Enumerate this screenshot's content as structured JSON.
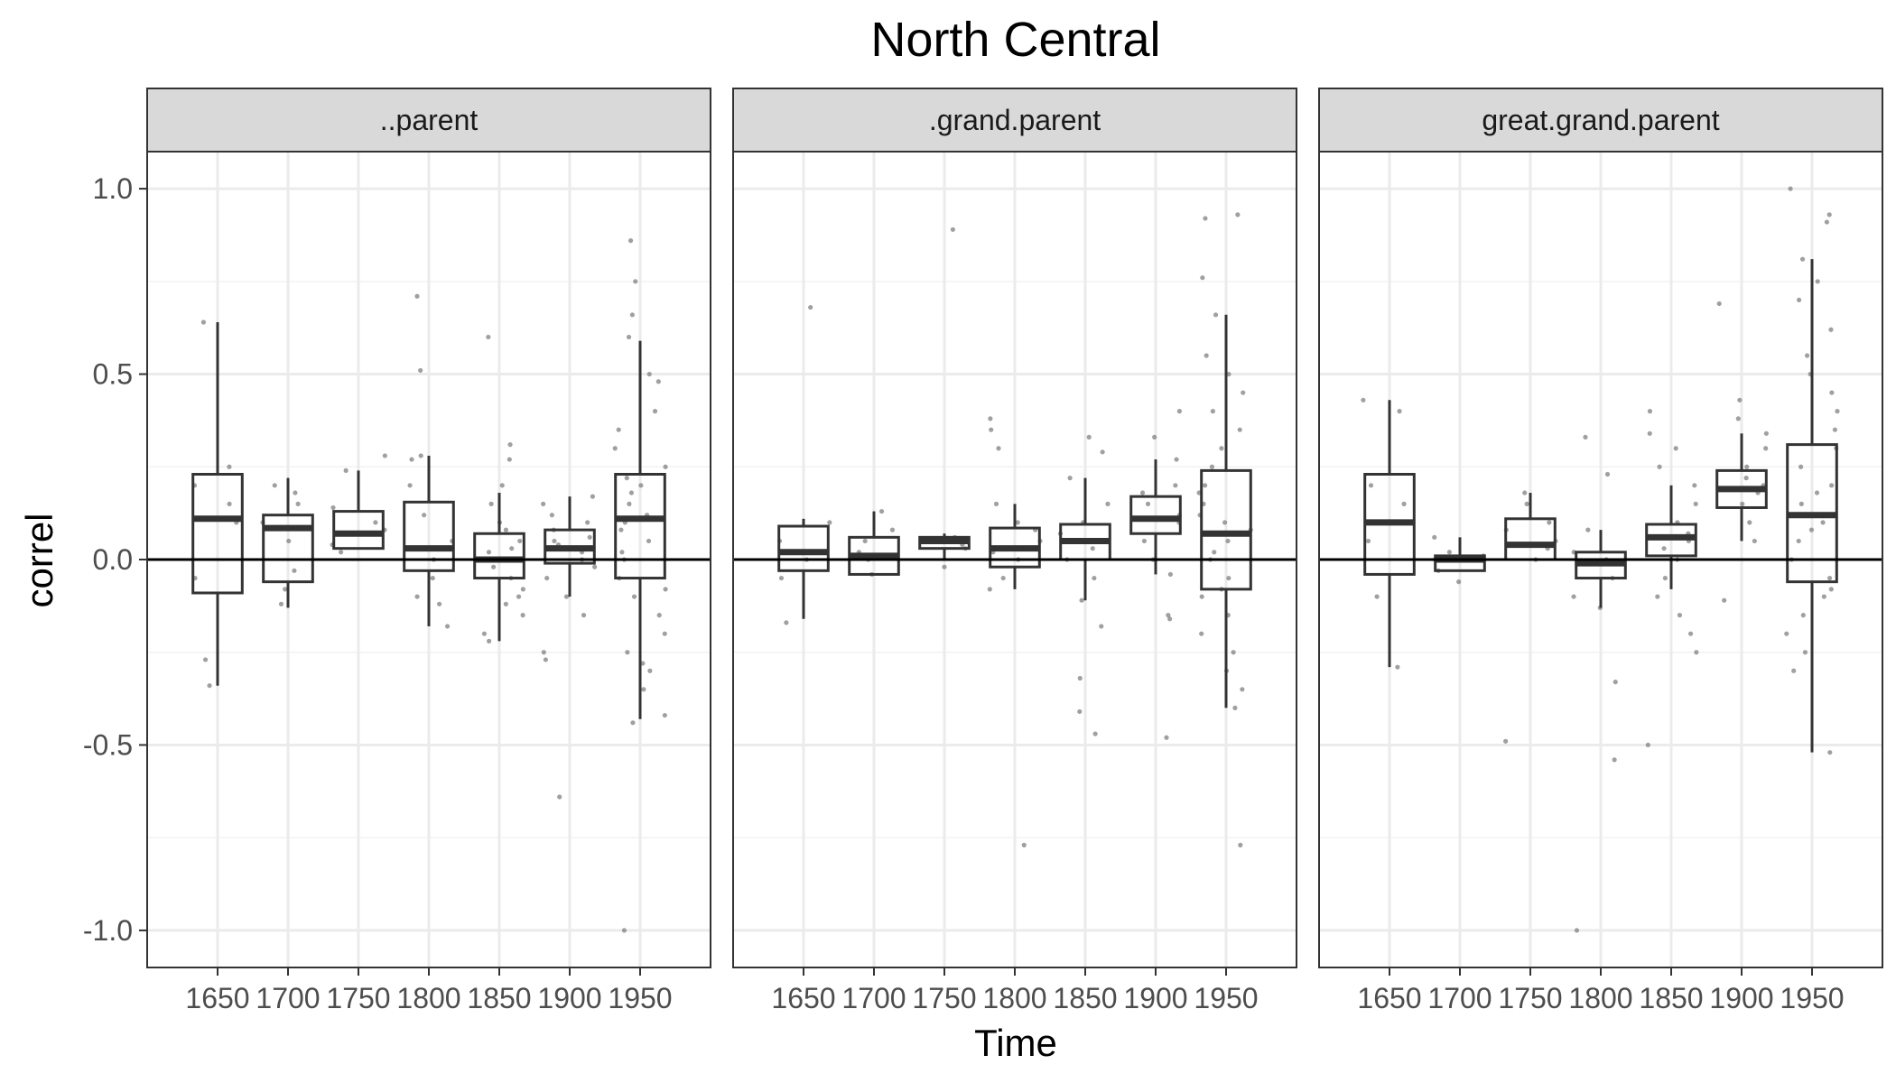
{
  "chart_data": {
    "type": "boxplot",
    "title": "North Central",
    "xlabel": "Time",
    "ylabel": "correl",
    "ylim": [
      -1.1,
      1.1
    ],
    "yticks": [
      1.0,
      0.5,
      0.0,
      -0.5,
      -1.0
    ],
    "ytick_labels": [
      "1.0",
      "0.5",
      "0.0",
      "-0.5",
      "-1.0"
    ],
    "categories": [
      "1650",
      "1700",
      "1750",
      "1800",
      "1850",
      "1900",
      "1950"
    ],
    "reference_line": 0,
    "facets": [
      {
        "label": "..parent",
        "boxes": [
          {
            "x": "1650",
            "lower": -0.34,
            "q1": -0.09,
            "median": 0.11,
            "q3": 0.23,
            "upper": 0.64
          },
          {
            "x": "1700",
            "lower": -0.13,
            "q1": -0.06,
            "median": 0.085,
            "q3": 0.12,
            "upper": 0.22
          },
          {
            "x": "1750",
            "lower": 0.03,
            "q1": 0.03,
            "median": 0.07,
            "q3": 0.13,
            "upper": 0.24
          },
          {
            "x": "1800",
            "lower": -0.18,
            "q1": -0.03,
            "median": 0.03,
            "q3": 0.155,
            "upper": 0.28
          },
          {
            "x": "1850",
            "lower": -0.22,
            "q1": -0.05,
            "median": 0.0,
            "q3": 0.07,
            "upper": 0.18
          },
          {
            "x": "1900",
            "lower": -0.1,
            "q1": -0.01,
            "median": 0.03,
            "q3": 0.08,
            "upper": 0.17
          },
          {
            "x": "1950",
            "lower": -0.43,
            "q1": -0.05,
            "median": 0.11,
            "q3": 0.23,
            "upper": 0.59
          }
        ],
        "points": [
          {
            "x": "1650",
            "y": [
              0.64,
              -0.27,
              -0.34,
              0.2,
              0.25,
              0.1,
              -0.05,
              0.15
            ]
          },
          {
            "x": "1700",
            "y": [
              0.2,
              0.18,
              0.15,
              -0.08,
              -0.12,
              0.05,
              0.1,
              -0.03
            ]
          },
          {
            "x": "1750",
            "y": [
              0.24,
              0.28,
              0.04,
              0.1,
              0.14,
              0.02,
              0.08
            ]
          },
          {
            "x": "1800",
            "y": [
              0.71,
              0.51,
              0.28,
              0.27,
              -0.12,
              -0.18,
              0.05,
              0.12,
              -0.05,
              0.0,
              0.2,
              -0.1
            ]
          },
          {
            "x": "1850",
            "y": [
              0.6,
              0.31,
              0.27,
              0.2,
              0.15,
              0.1,
              0.05,
              0.02,
              -0.02,
              -0.05,
              -0.08,
              -0.12,
              -0.15,
              -0.2,
              -0.22,
              0.08,
              0.0,
              0.03,
              -0.1
            ]
          },
          {
            "x": "1900",
            "y": [
              -0.64,
              -0.27,
              -0.25,
              0.17,
              0.15,
              0.12,
              0.1,
              0.08,
              0.05,
              0.03,
              0.0,
              -0.02,
              -0.05,
              -0.1,
              -0.15,
              0.06,
              0.02,
              0.04
            ]
          },
          {
            "x": "1950",
            "y": [
              0.86,
              0.75,
              0.66,
              0.6,
              0.5,
              0.48,
              0.4,
              0.35,
              0.3,
              0.25,
              0.2,
              0.15,
              0.1,
              0.05,
              0.0,
              -0.05,
              -0.1,
              -0.15,
              -0.2,
              -0.25,
              -0.28,
              -0.3,
              -0.35,
              -0.42,
              -0.44,
              -1.0,
              0.12,
              0.18,
              0.08,
              -0.08,
              0.22,
              0.02
            ]
          }
        ]
      },
      {
        "label": ".grand.parent",
        "boxes": [
          {
            "x": "1650",
            "lower": -0.16,
            "q1": -0.03,
            "median": 0.02,
            "q3": 0.09,
            "upper": 0.11
          },
          {
            "x": "1700",
            "lower": -0.04,
            "q1": -0.04,
            "median": 0.01,
            "q3": 0.06,
            "upper": 0.13
          },
          {
            "x": "1750",
            "lower": 0.0,
            "q1": 0.03,
            "median": 0.05,
            "q3": 0.06,
            "upper": 0.07
          },
          {
            "x": "1800",
            "lower": -0.08,
            "q1": -0.02,
            "median": 0.03,
            "q3": 0.085,
            "upper": 0.15
          },
          {
            "x": "1850",
            "lower": -0.11,
            "q1": 0.0,
            "median": 0.05,
            "q3": 0.095,
            "upper": 0.22
          },
          {
            "x": "1900",
            "lower": -0.04,
            "q1": 0.07,
            "median": 0.11,
            "q3": 0.17,
            "upper": 0.27
          },
          {
            "x": "1950",
            "lower": -0.4,
            "q1": -0.08,
            "median": 0.07,
            "q3": 0.24,
            "upper": 0.66
          }
        ],
        "points": [
          {
            "x": "1650",
            "y": [
              0.68,
              0.1,
              0.05,
              -0.05,
              -0.17,
              0.0
            ]
          },
          {
            "x": "1700",
            "y": [
              0.13,
              0.05,
              0.0,
              -0.04,
              0.08,
              0.02
            ]
          },
          {
            "x": "1750",
            "y": [
              0.89,
              0.06,
              0.05,
              0.04,
              -0.02,
              0.03
            ]
          },
          {
            "x": "1800",
            "y": [
              -0.77,
              0.38,
              0.35,
              0.3,
              0.15,
              0.1,
              0.05,
              0.0,
              -0.05,
              -0.08,
              0.08,
              0.02
            ]
          },
          {
            "x": "1850",
            "y": [
              -0.47,
              -0.32,
              -0.41,
              0.33,
              0.29,
              0.22,
              0.15,
              0.1,
              0.05,
              0.0,
              -0.05,
              -0.11,
              -0.18,
              0.07,
              0.03
            ]
          },
          {
            "x": "1900",
            "y": [
              -0.48,
              -0.16,
              -0.15,
              0.4,
              0.33,
              0.27,
              0.2,
              0.15,
              0.1,
              0.05,
              0.0,
              -0.04,
              0.12,
              0.18
            ]
          },
          {
            "x": "1950",
            "y": [
              0.93,
              0.92,
              0.76,
              0.66,
              0.55,
              0.5,
              0.45,
              0.4,
              0.35,
              0.3,
              0.25,
              0.2,
              0.15,
              0.1,
              0.05,
              0.0,
              -0.05,
              -0.1,
              -0.15,
              -0.2,
              -0.25,
              -0.3,
              -0.35,
              -0.4,
              -0.77,
              0.12,
              0.08,
              -0.08,
              0.18,
              0.02
            ]
          }
        ]
      },
      {
        "label": "great.grand.parent",
        "boxes": [
          {
            "x": "1650",
            "lower": -0.29,
            "q1": -0.04,
            "median": 0.1,
            "q3": 0.23,
            "upper": 0.43
          },
          {
            "x": "1700",
            "lower": -0.03,
            "q1": -0.03,
            "median": 0.0,
            "q3": 0.01,
            "upper": 0.06
          },
          {
            "x": "1750",
            "lower": 0.0,
            "q1": 0.0,
            "median": 0.04,
            "q3": 0.11,
            "upper": 0.18
          },
          {
            "x": "1800",
            "lower": -0.13,
            "q1": -0.05,
            "median": -0.01,
            "q3": 0.02,
            "upper": 0.08
          },
          {
            "x": "1850",
            "lower": -0.08,
            "q1": 0.01,
            "median": 0.06,
            "q3": 0.095,
            "upper": 0.2
          },
          {
            "x": "1900",
            "lower": 0.05,
            "q1": 0.14,
            "median": 0.19,
            "q3": 0.24,
            "upper": 0.34
          },
          {
            "x": "1950",
            "lower": -0.52,
            "q1": -0.06,
            "median": 0.12,
            "q3": 0.31,
            "upper": 0.81
          }
        ],
        "points": [
          {
            "x": "1650",
            "y": [
              0.43,
              0.4,
              0.15,
              0.05,
              -0.29,
              -0.1,
              0.2
            ]
          },
          {
            "x": "1700",
            "y": [
              0.06,
              0.0,
              -0.03,
              -0.06,
              0.02,
              0.01
            ]
          },
          {
            "x": "1750",
            "y": [
              -0.49,
              0.18,
              0.15,
              0.1,
              0.05,
              0.0,
              0.08,
              0.03
            ]
          },
          {
            "x": "1800",
            "y": [
              -1.0,
              -0.54,
              -0.33,
              0.33,
              0.23,
              0.08,
              0.02,
              -0.05,
              -0.1,
              -0.13,
              0.0
            ]
          },
          {
            "x": "1850",
            "y": [
              -0.5,
              0.4,
              0.34,
              0.3,
              0.25,
              0.2,
              0.15,
              0.1,
              0.05,
              0.0,
              -0.05,
              -0.1,
              -0.15,
              -0.2,
              -0.25,
              0.07,
              0.03
            ]
          },
          {
            "x": "1900",
            "y": [
              0.69,
              0.43,
              0.38,
              0.34,
              0.3,
              0.25,
              0.2,
              0.15,
              0.1,
              0.05,
              -0.11,
              0.22,
              0.18
            ]
          },
          {
            "x": "1950",
            "y": [
              1.0,
              0.93,
              0.91,
              0.81,
              0.75,
              0.7,
              0.62,
              0.55,
              0.5,
              0.45,
              0.4,
              0.35,
              0.3,
              0.25,
              0.2,
              0.15,
              0.1,
              0.05,
              0.0,
              -0.05,
              -0.1,
              -0.15,
              -0.2,
              -0.25,
              -0.3,
              -0.52,
              0.12,
              0.08,
              -0.08,
              0.18
            ]
          }
        ]
      }
    ]
  }
}
